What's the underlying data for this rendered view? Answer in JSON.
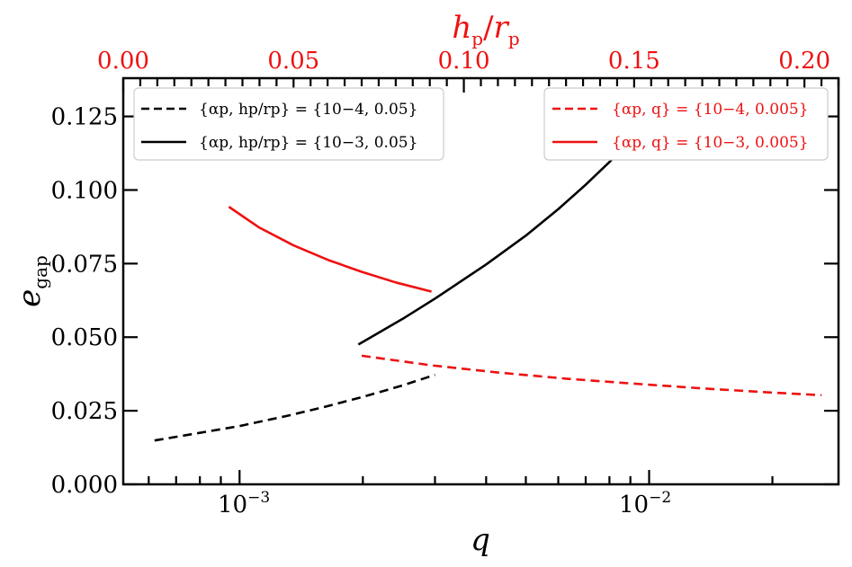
{
  "colors": {
    "black": "#000000",
    "red": "#ee1111"
  },
  "axes": {
    "bottom": {
      "label": "q",
      "scale": "log",
      "range": [
        0.00052,
        0.029
      ],
      "major_ticks": [
        {
          "value": 0.001,
          "base": "10",
          "exponent": "−3"
        },
        {
          "value": 0.01,
          "base": "10",
          "exponent": "−2"
        }
      ]
    },
    "top": {
      "label_main": "h",
      "label_main_sub": "p",
      "label_slash": "/",
      "label_den": "r",
      "label_den_sub": "p",
      "scale": "linear",
      "range": [
        0.0,
        0.21
      ],
      "ticks": [
        "0.00",
        "0.05",
        "0.10",
        "0.15",
        "0.20"
      ],
      "tick_values": [
        0.0,
        0.05,
        0.1,
        0.15,
        0.2
      ]
    },
    "left": {
      "label_main": "e",
      "label_sub": "gap",
      "range": [
        0.0,
        0.138
      ],
      "ticks": [
        "0.000",
        "0.025",
        "0.050",
        "0.075",
        "0.100",
        "0.125"
      ],
      "tick_values": [
        0.0,
        0.025,
        0.05,
        0.075,
        0.1,
        0.125
      ]
    }
  },
  "legends": {
    "left": {
      "placement": "top-left",
      "entries": [
        {
          "style": "dashed",
          "color": "#000000",
          "text": "{αp, hp/rp} = {10−4, 0.05}"
        },
        {
          "style": "solid",
          "color": "#000000",
          "text": "{αp, hp/rp} = {10−3, 0.05}"
        }
      ]
    },
    "right": {
      "placement": "top-right",
      "entries": [
        {
          "style": "dashed",
          "color": "#ee1111",
          "text": "{αp, q} = {10−4, 0.005}"
        },
        {
          "style": "solid",
          "color": "#ee1111",
          "text": "{αp, q} = {10−3, 0.005}"
        }
      ]
    }
  },
  "chart_data": {
    "type": "line",
    "xlabel": "q",
    "x2label": "hp/rp",
    "ylabel": "egap",
    "xscale": "log",
    "xlim": [
      0.00052,
      0.029
    ],
    "x2lim": [
      0.0,
      0.21
    ],
    "ylim": [
      0.0,
      0.138
    ],
    "grid": false,
    "series": [
      {
        "name": "{αp, hp/rp} = {10−4, 0.05}",
        "axis": "bottom",
        "color": "#000000",
        "style": "dashed",
        "x": [
          0.00062,
          0.0008,
          0.001,
          0.0013,
          0.0016,
          0.002,
          0.0025,
          0.003
        ],
        "y": [
          0.0149,
          0.0175,
          0.0198,
          0.0232,
          0.0262,
          0.0297,
          0.0336,
          0.0372
        ]
      },
      {
        "name": "{αp, hp/rp} = {10−3, 0.05}",
        "axis": "bottom",
        "color": "#000000",
        "style": "solid",
        "x": [
          0.00195,
          0.0025,
          0.003,
          0.004,
          0.005,
          0.006,
          0.007,
          0.008,
          0.0093
        ],
        "y": [
          0.0475,
          0.0562,
          0.0631,
          0.0747,
          0.0845,
          0.0935,
          0.1018,
          0.1095,
          0.119
        ]
      },
      {
        "name": "{αp, q} = {10−4, 0.005}",
        "axis": "top",
        "color": "#ee1111",
        "style": "dashed",
        "x": [
          0.07,
          0.09,
          0.11,
          0.13,
          0.15,
          0.17,
          0.19,
          0.205
        ],
        "y": [
          0.0437,
          0.0405,
          0.038,
          0.0359,
          0.0342,
          0.0326,
          0.0312,
          0.0303
        ]
      },
      {
        "name": "{αp, q} = {10−3, 0.005}",
        "axis": "top",
        "color": "#ee1111",
        "style": "solid",
        "x": [
          0.031,
          0.04,
          0.05,
          0.06,
          0.07,
          0.08,
          0.0905
        ],
        "y": [
          0.0943,
          0.0872,
          0.0812,
          0.0763,
          0.0722,
          0.0686,
          0.0655
        ]
      }
    ]
  }
}
